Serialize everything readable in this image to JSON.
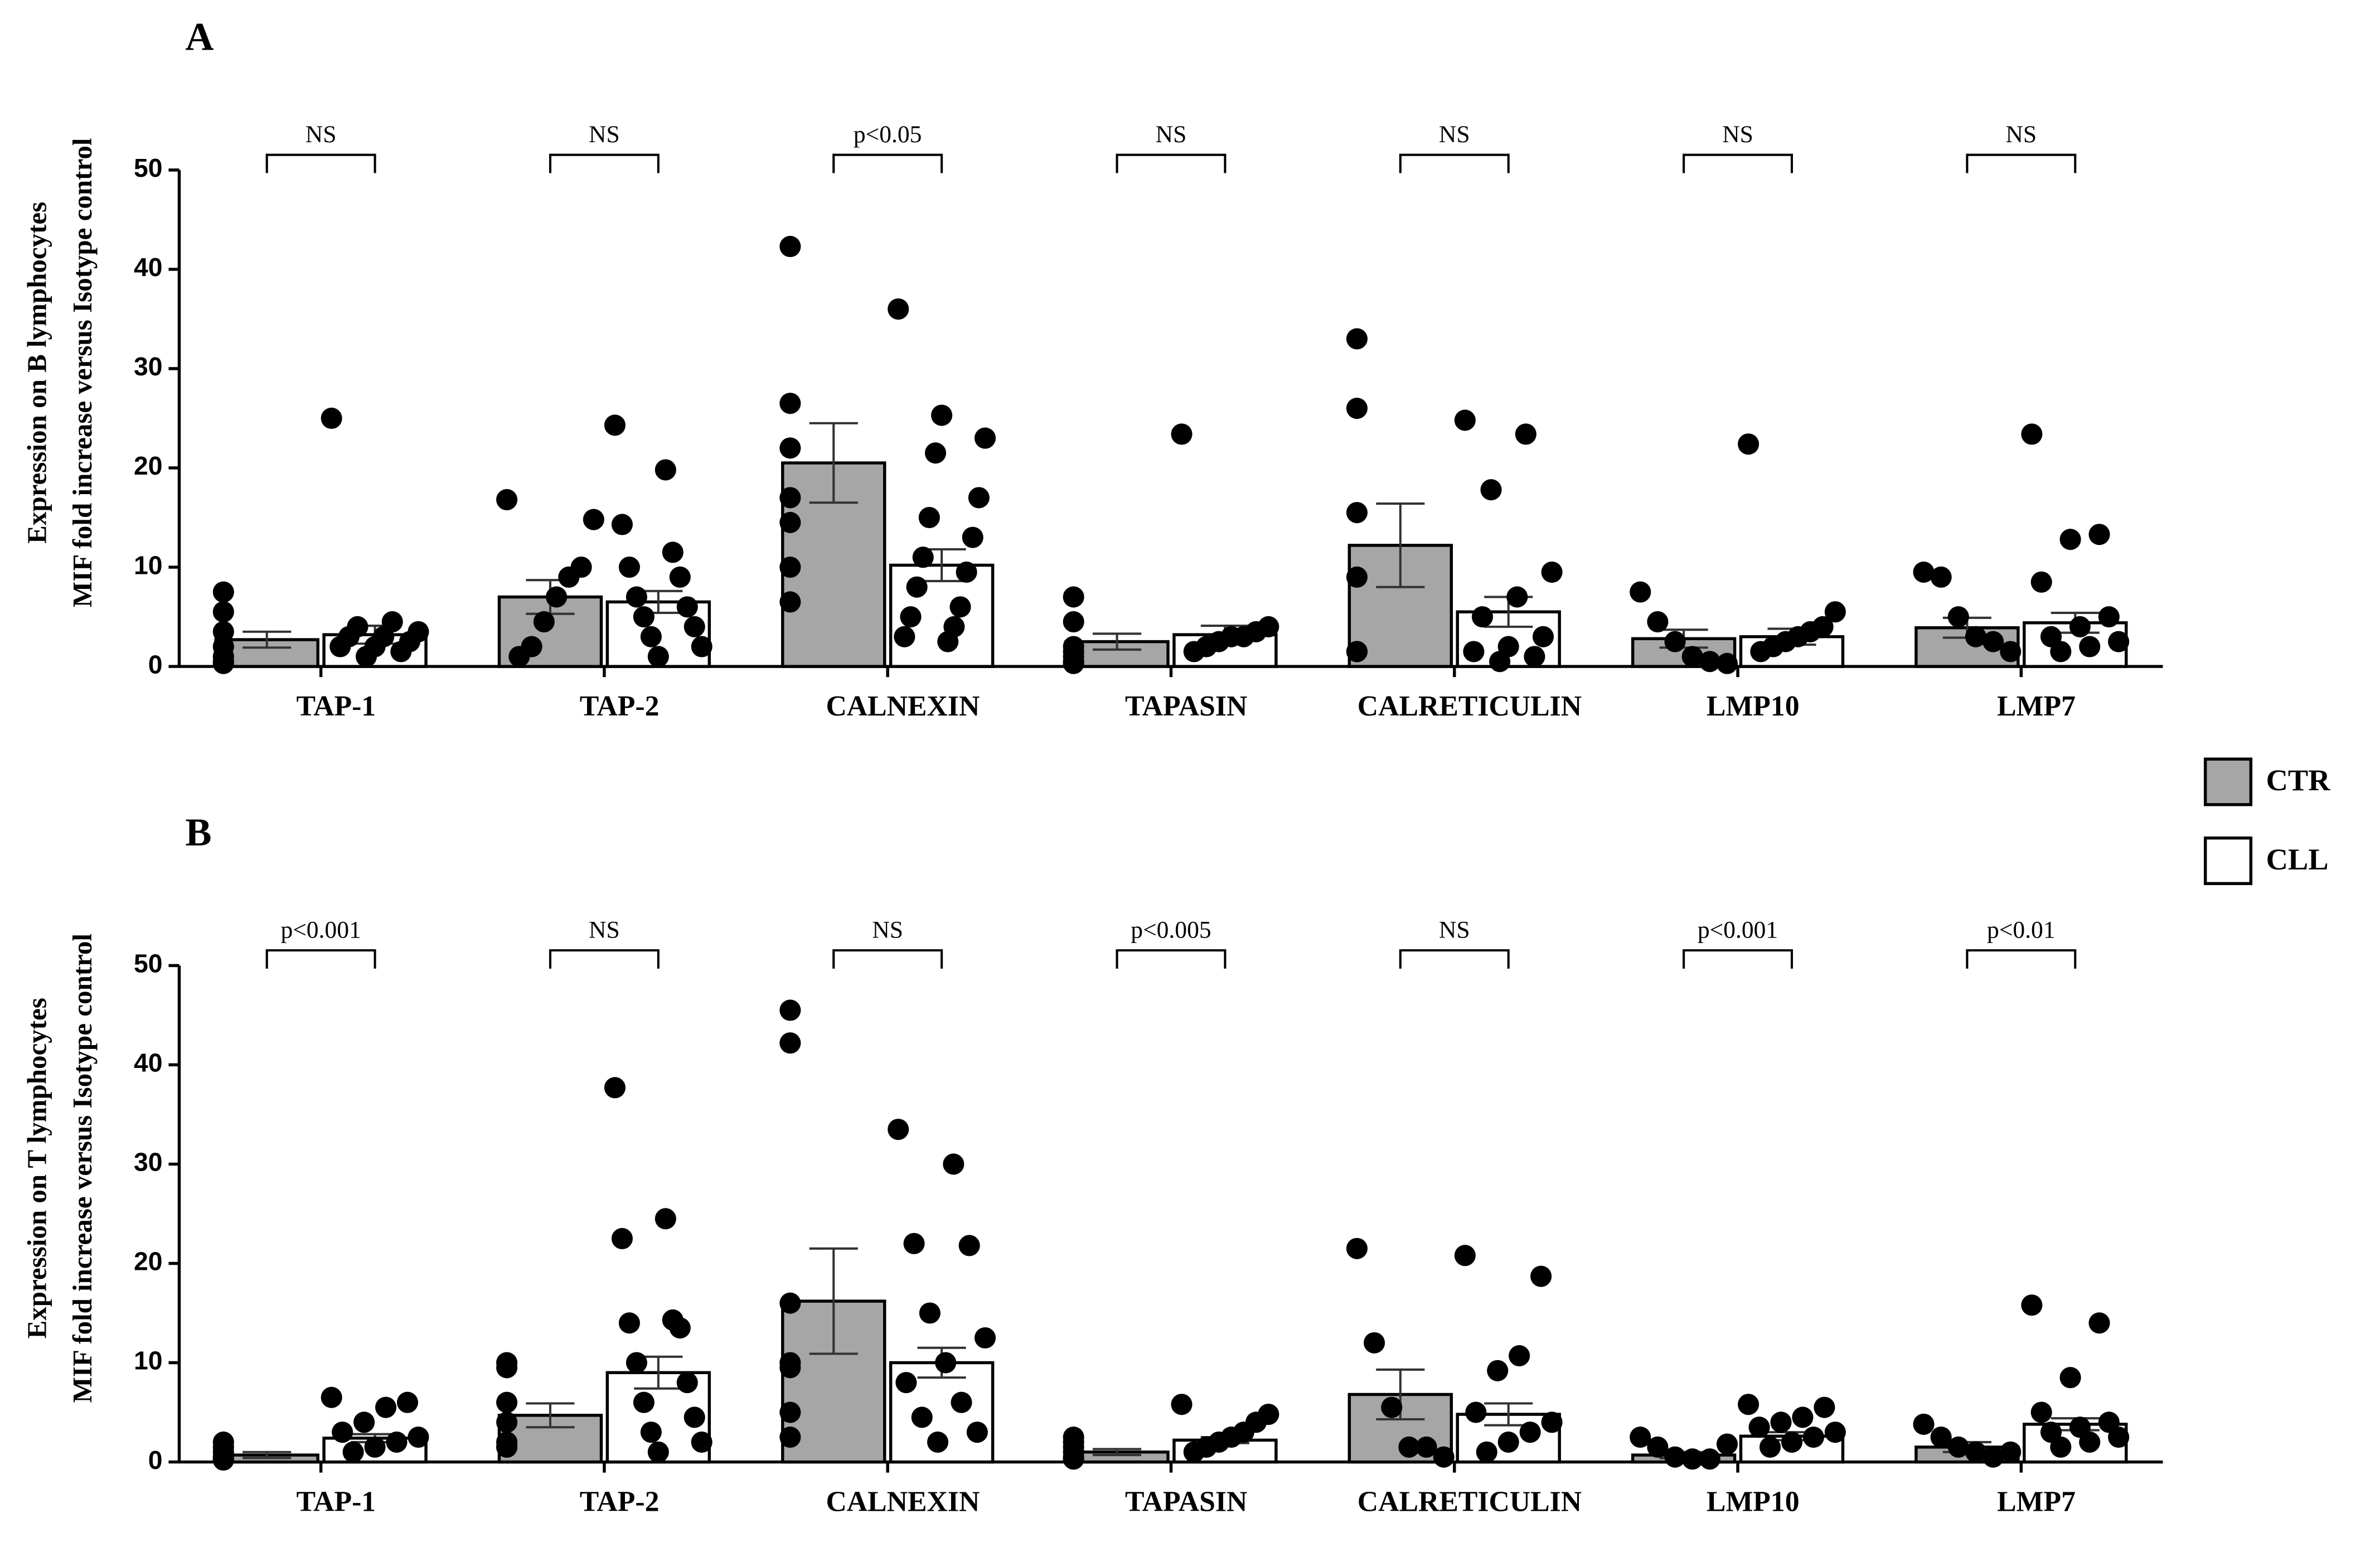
{
  "chart_data": [
    {
      "type": "bar",
      "title": "A",
      "ylabel": [
        "Expression on B lymphocytes",
        "MIF fold increase versus Isotype control"
      ],
      "categories": [
        "TAP-1",
        "TAP-2",
        "CALNEXIN",
        "TAPASIN",
        "CALRETICULIN",
        "LMP10",
        "LMP7"
      ],
      "annotations": [
        "NS",
        "NS",
        "p<0.05",
        "NS",
        "NS",
        "NS",
        "NS"
      ],
      "ylim": [
        0,
        50
      ],
      "yticks": [
        0,
        10,
        20,
        30,
        40,
        50
      ],
      "series": [
        {
          "color": "#a6a6a6",
          "values": [
            2.7,
            7,
            20.5,
            2.5,
            12.2,
            2.8,
            3.9
          ],
          "errors": [
            0.8,
            1.7,
            4,
            0.8,
            4.2,
            0.9,
            1
          ],
          "points": [
            [
              7.5,
              5.5,
              3.5,
              1,
              0.5,
              0.3,
              2
            ],
            [
              16.8,
              14.8,
              10,
              9,
              7,
              4.5,
              2,
              1
            ],
            [
              42.3,
              26.5,
              22,
              17,
              14.5,
              10,
              6.5
            ],
            [
              7,
              4.5,
              2,
              1,
              0.5,
              0.3,
              1.5
            ],
            [
              33,
              26,
              15.5,
              9,
              1.5,
              1.5,
              1.5
            ],
            [
              7.5,
              4.5,
              2.5,
              1,
              0.5,
              0.3
            ],
            [
              9.5,
              9,
              5,
              3,
              2.5,
              1.5
            ]
          ]
        },
        {
          "color": "#ffffff",
          "values": [
            3.2,
            6.5,
            10.2,
            3.2,
            5.5,
            3.0,
            4.4
          ],
          "errors": [
            0.9,
            1.1,
            1.6,
            0.9,
            1.5,
            0.8,
            1.0
          ],
          "points": [
            [
              25,
              4.5,
              4,
              3.5,
              3,
              3,
              2.5,
              2,
              2,
              1.5,
              1
            ],
            [
              24.3,
              19.8,
              14.3,
              11.5,
              10,
              9,
              7,
              6,
              5,
              4,
              3,
              2,
              1
            ],
            [
              36,
              25.3,
              23,
              21.5,
              17,
              15,
              13,
              11,
              9.5,
              8,
              6,
              5,
              4,
              3,
              2.5
            ],
            [
              23.4,
              4,
              3.5,
              3,
              3,
              2.5,
              2,
              1.5
            ],
            [
              24.8,
              23.4,
              17.8,
              9.5,
              7,
              5,
              3,
              2,
              1.5,
              1,
              0.5
            ],
            [
              22.4,
              5.5,
              4,
              3.5,
              3,
              2.5,
              2,
              1.5
            ],
            [
              23.4,
              13.3,
              12.8,
              8.5,
              5,
              4,
              3,
              2.5,
              2,
              1.5
            ]
          ]
        }
      ]
    },
    {
      "type": "bar",
      "title": "B",
      "ylabel": [
        "Expression on T lymphocytes",
        "MIF fold increase versus Isotype control"
      ],
      "categories": [
        "TAP-1",
        "TAP-2",
        "CALNEXIN",
        "TAPASIN",
        "CALRETICULIN",
        "LMP10",
        "LMP7"
      ],
      "annotations": [
        "p<0.001",
        "NS",
        "NS",
        "p<0.005",
        "NS",
        "p<0.001",
        "p<0.01"
      ],
      "ylim": [
        0,
        50
      ],
      "yticks": [
        0,
        10,
        20,
        30,
        40,
        50
      ],
      "legend": "right",
      "series": [
        {
          "name": "CTR",
          "color": "#a6a6a6",
          "values": [
            0.7,
            4.7,
            16.2,
            1.0,
            6.8,
            0.7,
            1.5
          ],
          "errors": [
            0.3,
            1.2,
            5.3,
            0.3,
            2.5,
            0.3,
            0.5
          ],
          "points": [
            [
              2,
              1,
              0.5,
              0.3,
              0.2,
              0.5,
              1.5
            ],
            [
              10,
              9.5,
              6,
              4,
              2,
              1.5,
              1.5
            ],
            [
              45.5,
              42.2,
              16,
              10,
              9.5,
              5,
              2.5
            ],
            [
              2.5,
              1.5,
              1,
              0.5,
              0.3,
              0.3,
              2
            ],
            [
              21.5,
              12,
              5.5,
              1.5,
              1.5,
              0.5
            ],
            [
              2.5,
              1.5,
              0.5,
              0.3,
              0.3,
              1.8
            ],
            [
              3.8,
              2.5,
              1.5,
              1,
              0.5,
              1
            ]
          ]
        },
        {
          "name": "CLL",
          "color": "#ffffff",
          "values": [
            2.4,
            9.0,
            10,
            2.2,
            4.8,
            2.6,
            3.8
          ],
          "errors": [
            0.4,
            1.6,
            1.5,
            0.3,
            1.1,
            0.4,
            0.6
          ],
          "points": [
            [
              6.5,
              6,
              5.5,
              4,
              3,
              2.5,
              2,
              1.5,
              1
            ],
            [
              37.7,
              24.5,
              22.5,
              14.3,
              14,
              13.5,
              10,
              8,
              6,
              4.5,
              3,
              2,
              1
            ],
            [
              33.5,
              30,
              22,
              21.8,
              15,
              12.5,
              10,
              8,
              6,
              4.5,
              3,
              2
            ],
            [
              5.8,
              4.8,
              4,
              3,
              2.5,
              2,
              1.5,
              1
            ],
            [
              20.8,
              18.7,
              10.7,
              9.2,
              5,
              4,
              3,
              2,
              1
            ],
            [
              5.8,
              5.5,
              4.5,
              4,
              3.5,
              3,
              2.5,
              2,
              1.5
            ],
            [
              15.8,
              14,
              8.5,
              5,
              4,
              3.5,
              3,
              2.5,
              2,
              1.5
            ]
          ]
        }
      ]
    }
  ]
}
